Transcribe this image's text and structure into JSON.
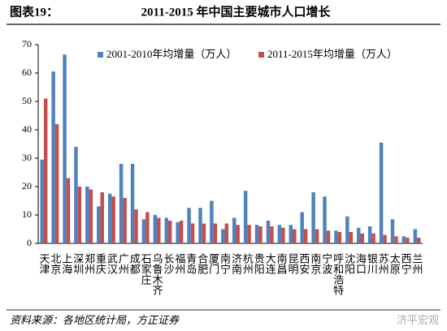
{
  "chart_data": {
    "type": "bar",
    "label": "图表19：",
    "title": "2011-2015 年中国主要城市人口增长",
    "categories": [
      "天津",
      "北京",
      "上海",
      "深圳",
      "郑州",
      "重庆",
      "武汉",
      "广州",
      "成都",
      "石家庄",
      "乌鲁木齐",
      "长沙",
      "福州",
      "青岛",
      "合肥",
      "厦门",
      "南宁",
      "济南",
      "杭州",
      "贵阳",
      "大连",
      "南昌",
      "昆明",
      "西安",
      "南京",
      "宁波",
      "呼和浩特",
      "沈阳",
      "海口",
      "银川",
      "苏州",
      "太原",
      "西宁",
      "兰州"
    ],
    "series": [
      {
        "name": "2001-2010年均增量（万人）",
        "color": "#4f81bd",
        "values": [
          29.5,
          60.5,
          66.5,
          34,
          20,
          13,
          17.5,
          28,
          28,
          8.5,
          10,
          9,
          7.5,
          12.5,
          12.5,
          15,
          5,
          9,
          18.5,
          6.5,
          8,
          6.5,
          6.5,
          11,
          18,
          16.5,
          4.5,
          9.5,
          5.5,
          6,
          35.5,
          8.5,
          2.5,
          5
        ]
      },
      {
        "name": "2011-2015年均增量（万人）",
        "color": "#c0504d",
        "values": [
          51,
          42,
          23,
          20,
          19,
          18,
          16.5,
          16,
          12,
          11,
          9,
          8,
          8,
          7,
          7,
          7,
          7,
          6.5,
          6.5,
          6,
          6,
          5.5,
          5,
          5,
          5,
          4.5,
          4,
          4,
          3.5,
          3.5,
          3,
          2.5,
          2,
          2
        ]
      }
    ],
    "ylim": [
      0,
      70
    ],
    "yticks": [
      0,
      10,
      20,
      30,
      40,
      50,
      60,
      70
    ],
    "legend": "top",
    "source": "资料来源：各地区统计局，方正证券",
    "watermark": "济平宏观"
  }
}
